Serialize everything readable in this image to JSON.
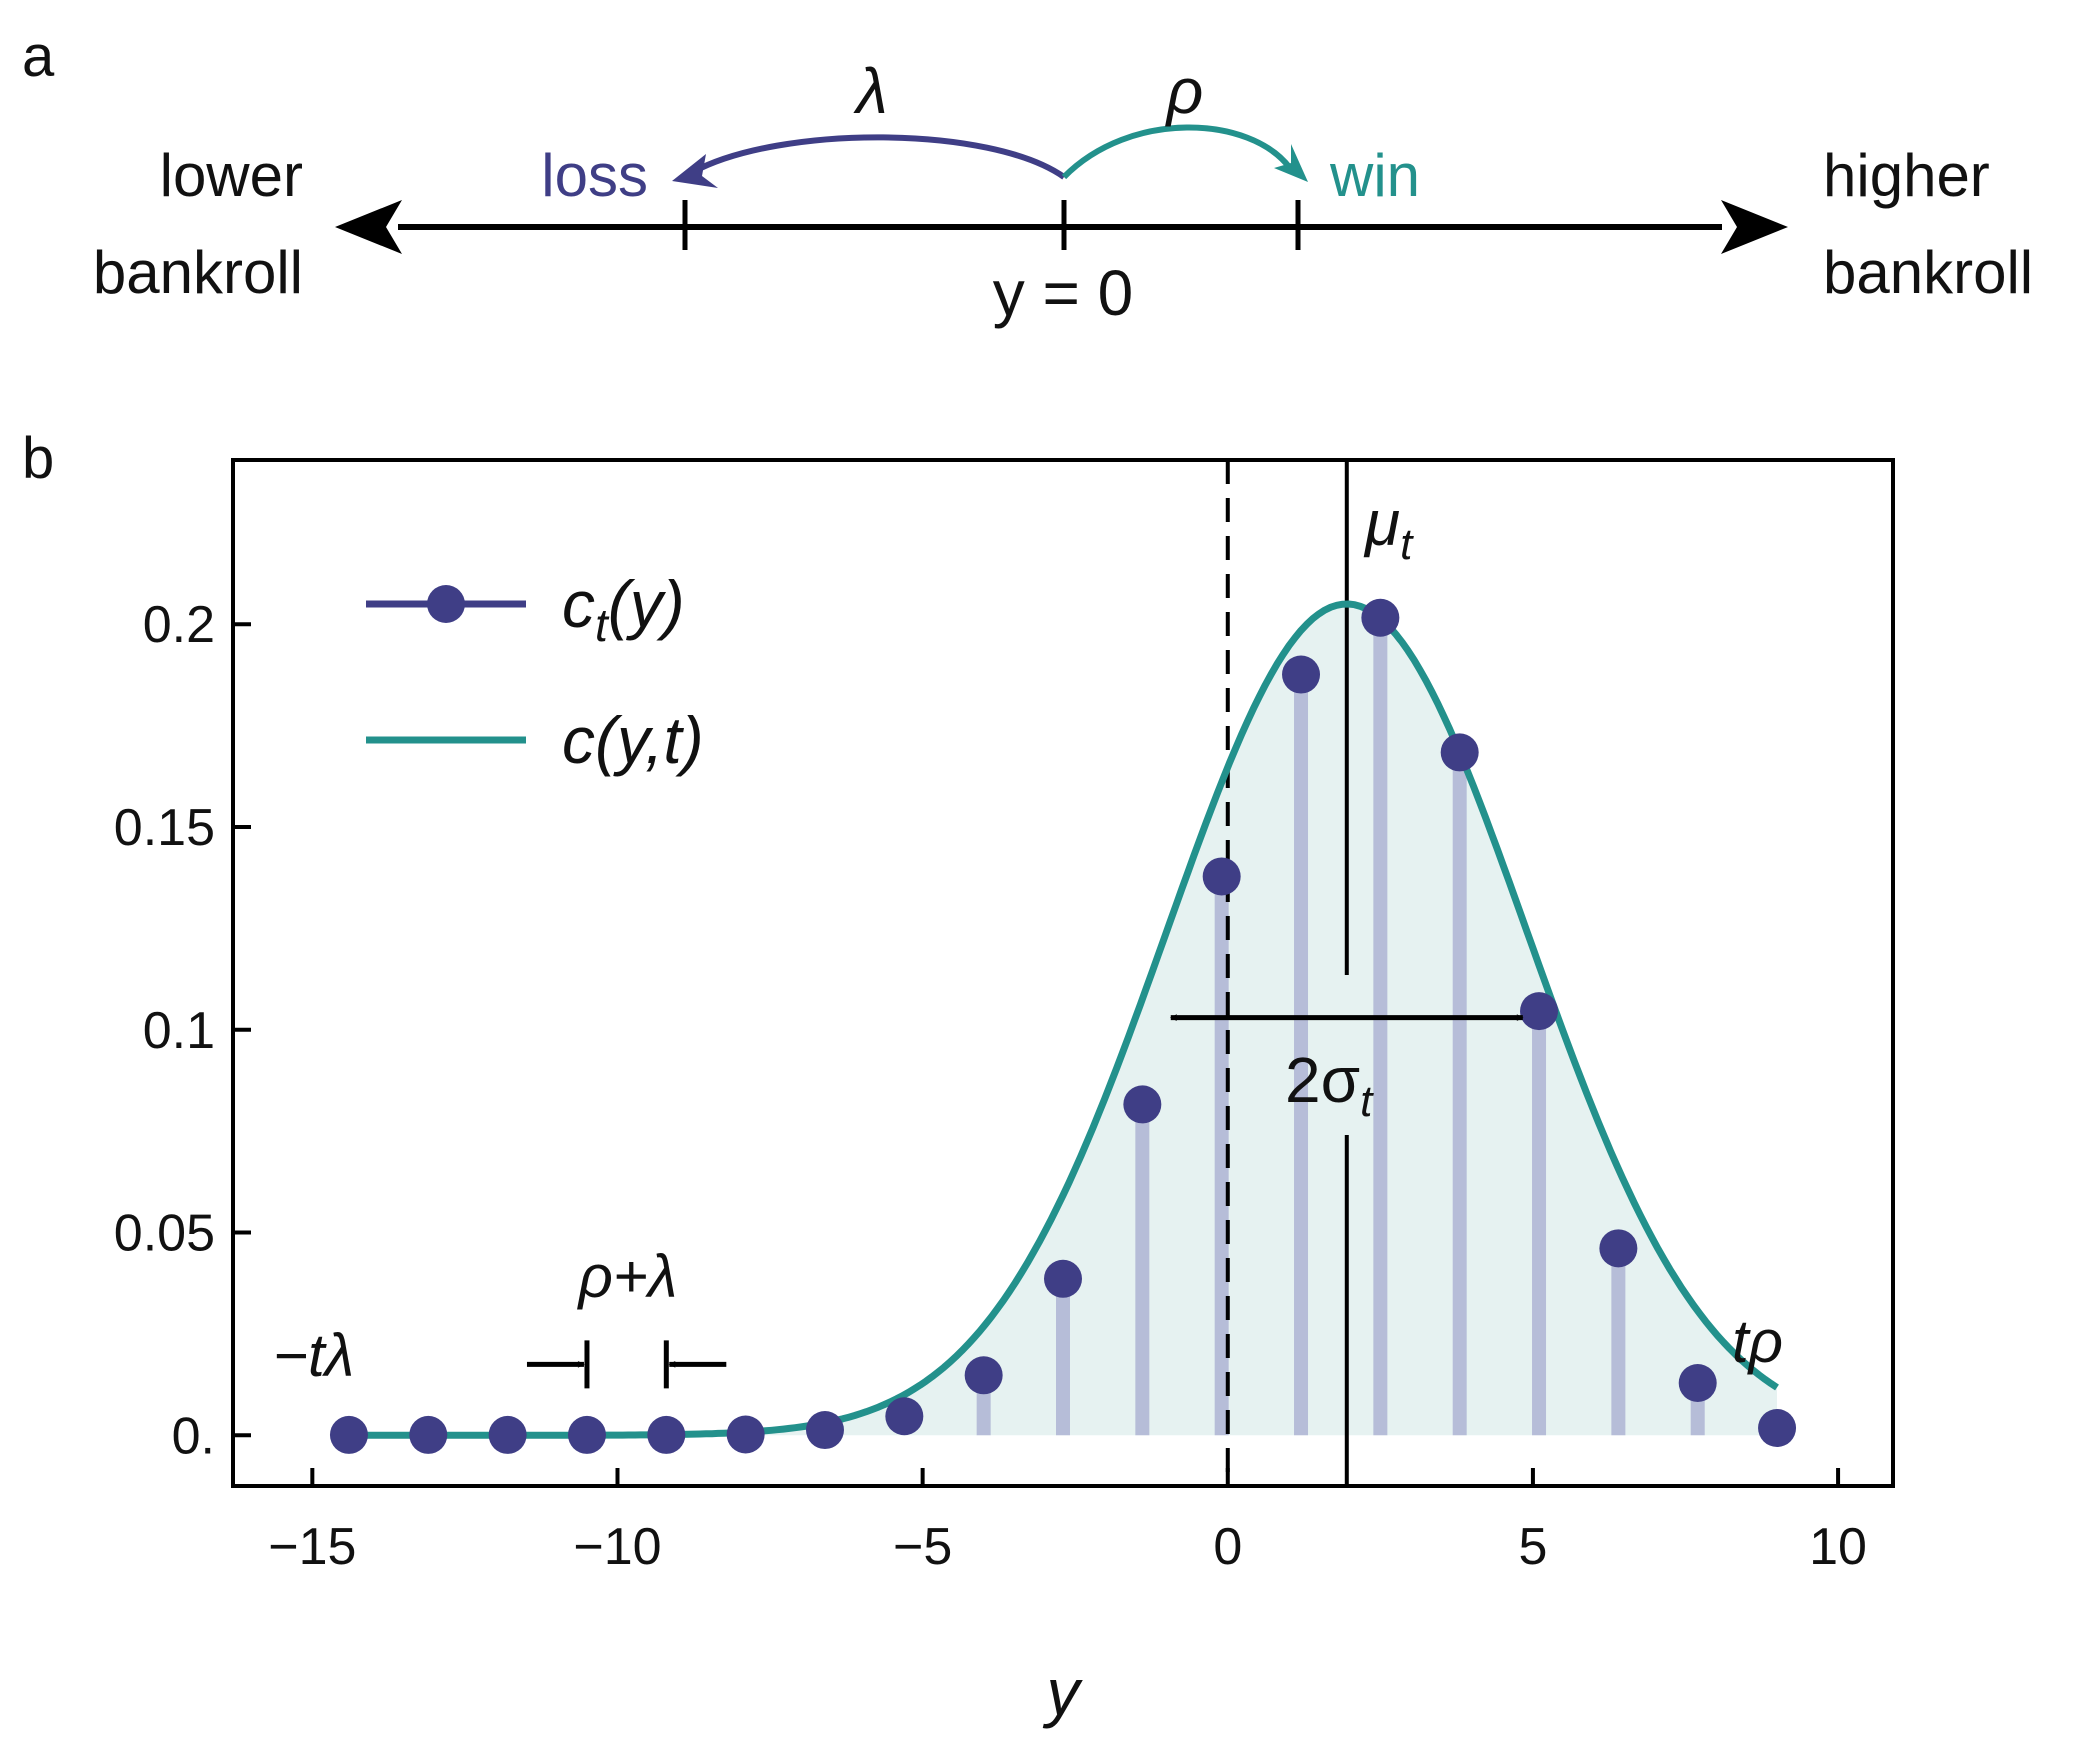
{
  "panel_a": {
    "label": "a",
    "left_label_line1": "lower",
    "left_label_line2": "bankroll",
    "right_label_line1": "higher",
    "right_label_line2": "bankroll",
    "loss_label": "loss",
    "win_label": "win",
    "lambda_label": "λ",
    "rho_label": "ρ",
    "origin_label": "y = 0",
    "colors": {
      "loss": "#3f3e86",
      "win": "#23918c",
      "axis": "#000000"
    }
  },
  "panel_b": {
    "label": "b"
  },
  "chart_data": {
    "type": "scatter",
    "xlabel": "y",
    "ylabel": "",
    "xlim": [
      -16.3,
      10.9
    ],
    "ylim": [
      -0.0125,
      0.2405
    ],
    "xticks": [
      -15,
      -10,
      -5,
      0,
      5,
      10
    ],
    "xtick_labels": [
      "−15",
      "−10",
      "−5",
      "0",
      "5",
      "10"
    ],
    "yticks": [
      0,
      0.05,
      0.1,
      0.15,
      0.2
    ],
    "ytick_labels": [
      "0.",
      "0.05",
      "0.1",
      "0.15",
      "0.2"
    ],
    "series": [
      {
        "name": "c_t(y)",
        "kind": "points_with_stems",
        "color": "#3f3e86",
        "x": [
          -14.4,
          -13.1,
          -11.8,
          -10.5,
          -9.2,
          -7.9,
          -6.6,
          -5.3,
          -4.0,
          -2.7,
          -1.4,
          -0.1,
          1.2,
          2.5,
          3.8,
          5.1,
          6.4,
          7.7,
          9.0
        ],
        "values": [
          0.0001,
          0.0001,
          0.0001,
          0.0001,
          0.0001,
          0.0002,
          0.0013,
          0.0047,
          0.0148,
          0.0386,
          0.0816,
          0.1378,
          0.1876,
          0.2016,
          0.1684,
          0.1046,
          0.0461,
          0.0129,
          0.0018
        ]
      },
      {
        "name": "c(y,t)",
        "kind": "line",
        "color": "#23918c",
        "fill": "#e6f2f1",
        "mean": 1.95,
        "sigma": 2.95,
        "peak": 0.205,
        "x_range": [
          -14.4,
          9.0
        ]
      }
    ],
    "legend": {
      "position": "top-left",
      "entries": [
        {
          "main": "c",
          "sub": "t",
          "rest": "(y)"
        },
        {
          "main": "c",
          "sub": "",
          "rest": "(y,t)"
        }
      ]
    },
    "annotations": {
      "mu_main": "μ",
      "mu_sub": "t",
      "mu_x": 1.95,
      "dashed_x": 0,
      "sigma_main": "2σ",
      "sigma_sub": "t",
      "sigma_range": [
        -1.0,
        4.9
      ],
      "sigma_y": 0.103,
      "neg_t_lambda": "−tλ",
      "t_rho": "tρ",
      "spacing_label": "ρ+λ",
      "spacing_x": [
        -10.5,
        -9.2
      ],
      "spacing_y": 0.0175
    }
  }
}
